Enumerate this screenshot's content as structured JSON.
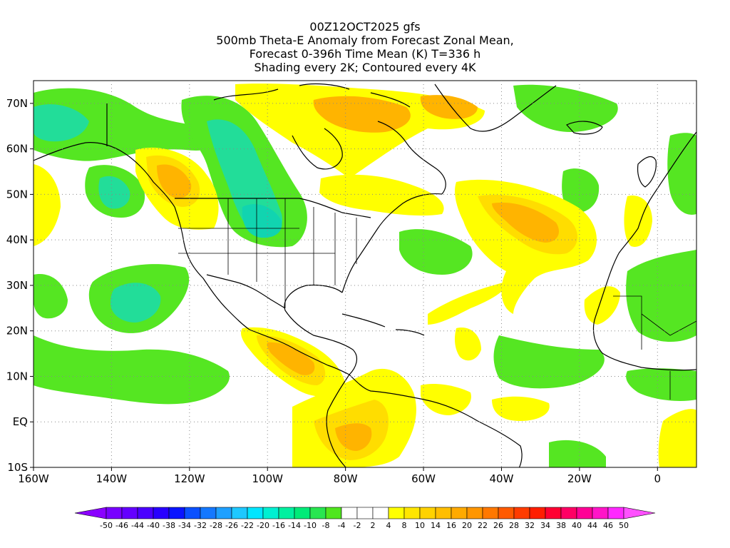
{
  "titles": {
    "line1": "00Z12OCT2025 gfs",
    "line2": "500mb Theta-E Anomaly from Forecast Zonal Mean,",
    "line3": "Forecast 0-396h Time Mean (K) T=336 h",
    "line4": "Shading every 2K; Contoured every 4K"
  },
  "map": {
    "lon_range": [
      -160,
      10
    ],
    "lat_range": [
      -10,
      75
    ],
    "lon_ticks": [
      "160W",
      "140W",
      "120W",
      "100W",
      "80W",
      "60W",
      "40W",
      "20W",
      "0"
    ],
    "lon_tick_values": [
      -160,
      -140,
      -120,
      -100,
      -80,
      -60,
      -40,
      -20,
      0
    ],
    "lat_ticks": [
      "70N",
      "60N",
      "50N",
      "40N",
      "30N",
      "20N",
      "10N",
      "EQ",
      "10S"
    ],
    "lat_tick_values": [
      70,
      60,
      50,
      40,
      30,
      20,
      10,
      0,
      -10
    ],
    "grid": true
  },
  "colorbar": {
    "labels": [
      "-50",
      "-46",
      "-44",
      "-40",
      "-38",
      "-34",
      "-32",
      "-28",
      "-26",
      "-22",
      "-20",
      "-16",
      "-14",
      "-10",
      "-8",
      "-4",
      "-2",
      "2",
      "4",
      "8",
      "10",
      "14",
      "16",
      "20",
      "22",
      "26",
      "28",
      "32",
      "34",
      "38",
      "40",
      "44",
      "46",
      "50"
    ],
    "colors": [
      "#8a00ff",
      "#7800ff",
      "#6400ff",
      "#4b00ff",
      "#2800ff",
      "#0a14ff",
      "#0a50ff",
      "#1478ff",
      "#1ea0ff",
      "#1ec8ff",
      "#00e6ff",
      "#00f0d2",
      "#00f0a0",
      "#00eb78",
      "#28e650",
      "#50e61e",
      "#ffffff",
      "#ffffff",
      "#ffffff",
      "#ffff00",
      "#ffe600",
      "#ffd200",
      "#ffbe00",
      "#ffaa00",
      "#ff9600",
      "#ff7800",
      "#ff5a00",
      "#ff3c00",
      "#ff1e00",
      "#ff0032",
      "#ff0064",
      "#ff0096",
      "#ff14c8",
      "#ff28ff",
      "#ff50ff"
    ]
  },
  "shading_colors": {
    "green": "#55e622",
    "light_green": "#33e655",
    "cyan_green": "#22dd99",
    "teal": "#11d4b0",
    "yellow": "#ffff00",
    "gold": "#ffdd00",
    "orange": "#ffb400",
    "dark_orange": "#ff9a00"
  }
}
